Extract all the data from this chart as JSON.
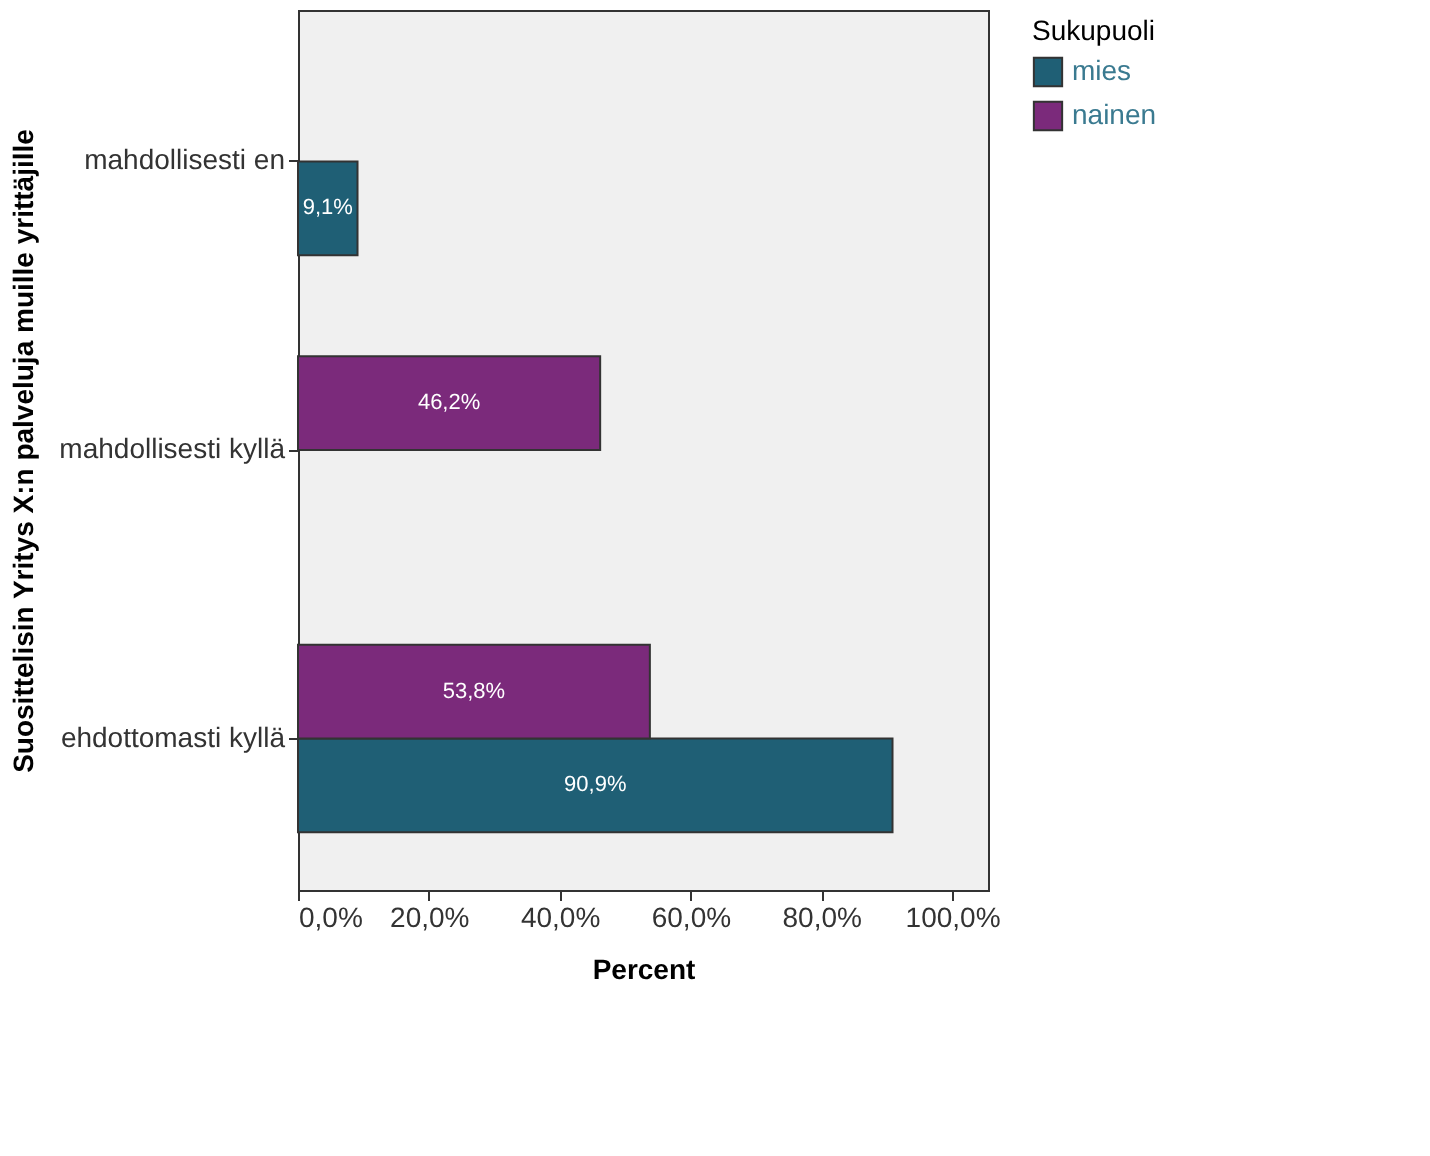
{
  "chart_data": {
    "type": "bar",
    "orientation": "horizontal",
    "xlabel": "Percent",
    "ylabel": "Suosittelisin Yritys X:n palveluja muille yrittäjille",
    "legend_title": "Sukupuoli",
    "legend": "right",
    "grid": false,
    "categories": [
      "mahdollisesti en",
      "mahdollisesti kyllä",
      "ehdottomasti kyllä"
    ],
    "series": [
      {
        "name": "mies",
        "color": "#1f5f75",
        "values": [
          9.1,
          null,
          90.9
        ],
        "value_labels": [
          "9,1%",
          null,
          "90,9%"
        ]
      },
      {
        "name": "nainen",
        "color": "#7b2a7b",
        "values": [
          null,
          46.2,
          53.8
        ],
        "value_labels": [
          null,
          "46,2%",
          "53,8%"
        ]
      }
    ],
    "xlim": [
      0,
      105.5
    ],
    "xticks": [
      {
        "value": 0,
        "label": "0,0%"
      },
      {
        "value": 20,
        "label": "20,0%"
      },
      {
        "value": 40,
        "label": "40,0%"
      },
      {
        "value": 60,
        "label": "60,0%"
      },
      {
        "value": 80,
        "label": "80,0%"
      },
      {
        "value": 100,
        "label": "100,0%"
      }
    ]
  }
}
